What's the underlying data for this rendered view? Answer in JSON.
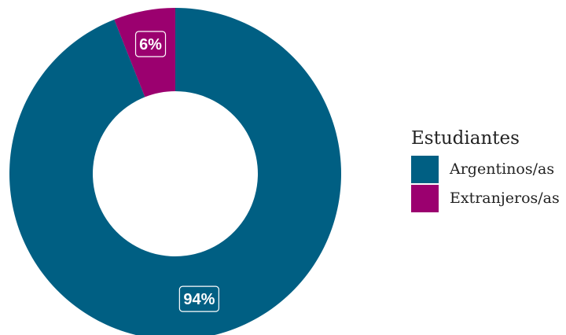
{
  "chart_data": {
    "type": "pie",
    "donut": true,
    "legend_title": "Estudiantes",
    "legend_position": "right",
    "slices": [
      {
        "name": "Argentinos/as",
        "value": 94,
        "label": "94%",
        "color": "#005f83"
      },
      {
        "name": "Extranjeros/as",
        "value": 6,
        "label": "6%",
        "color": "#9b006f"
      }
    ]
  }
}
